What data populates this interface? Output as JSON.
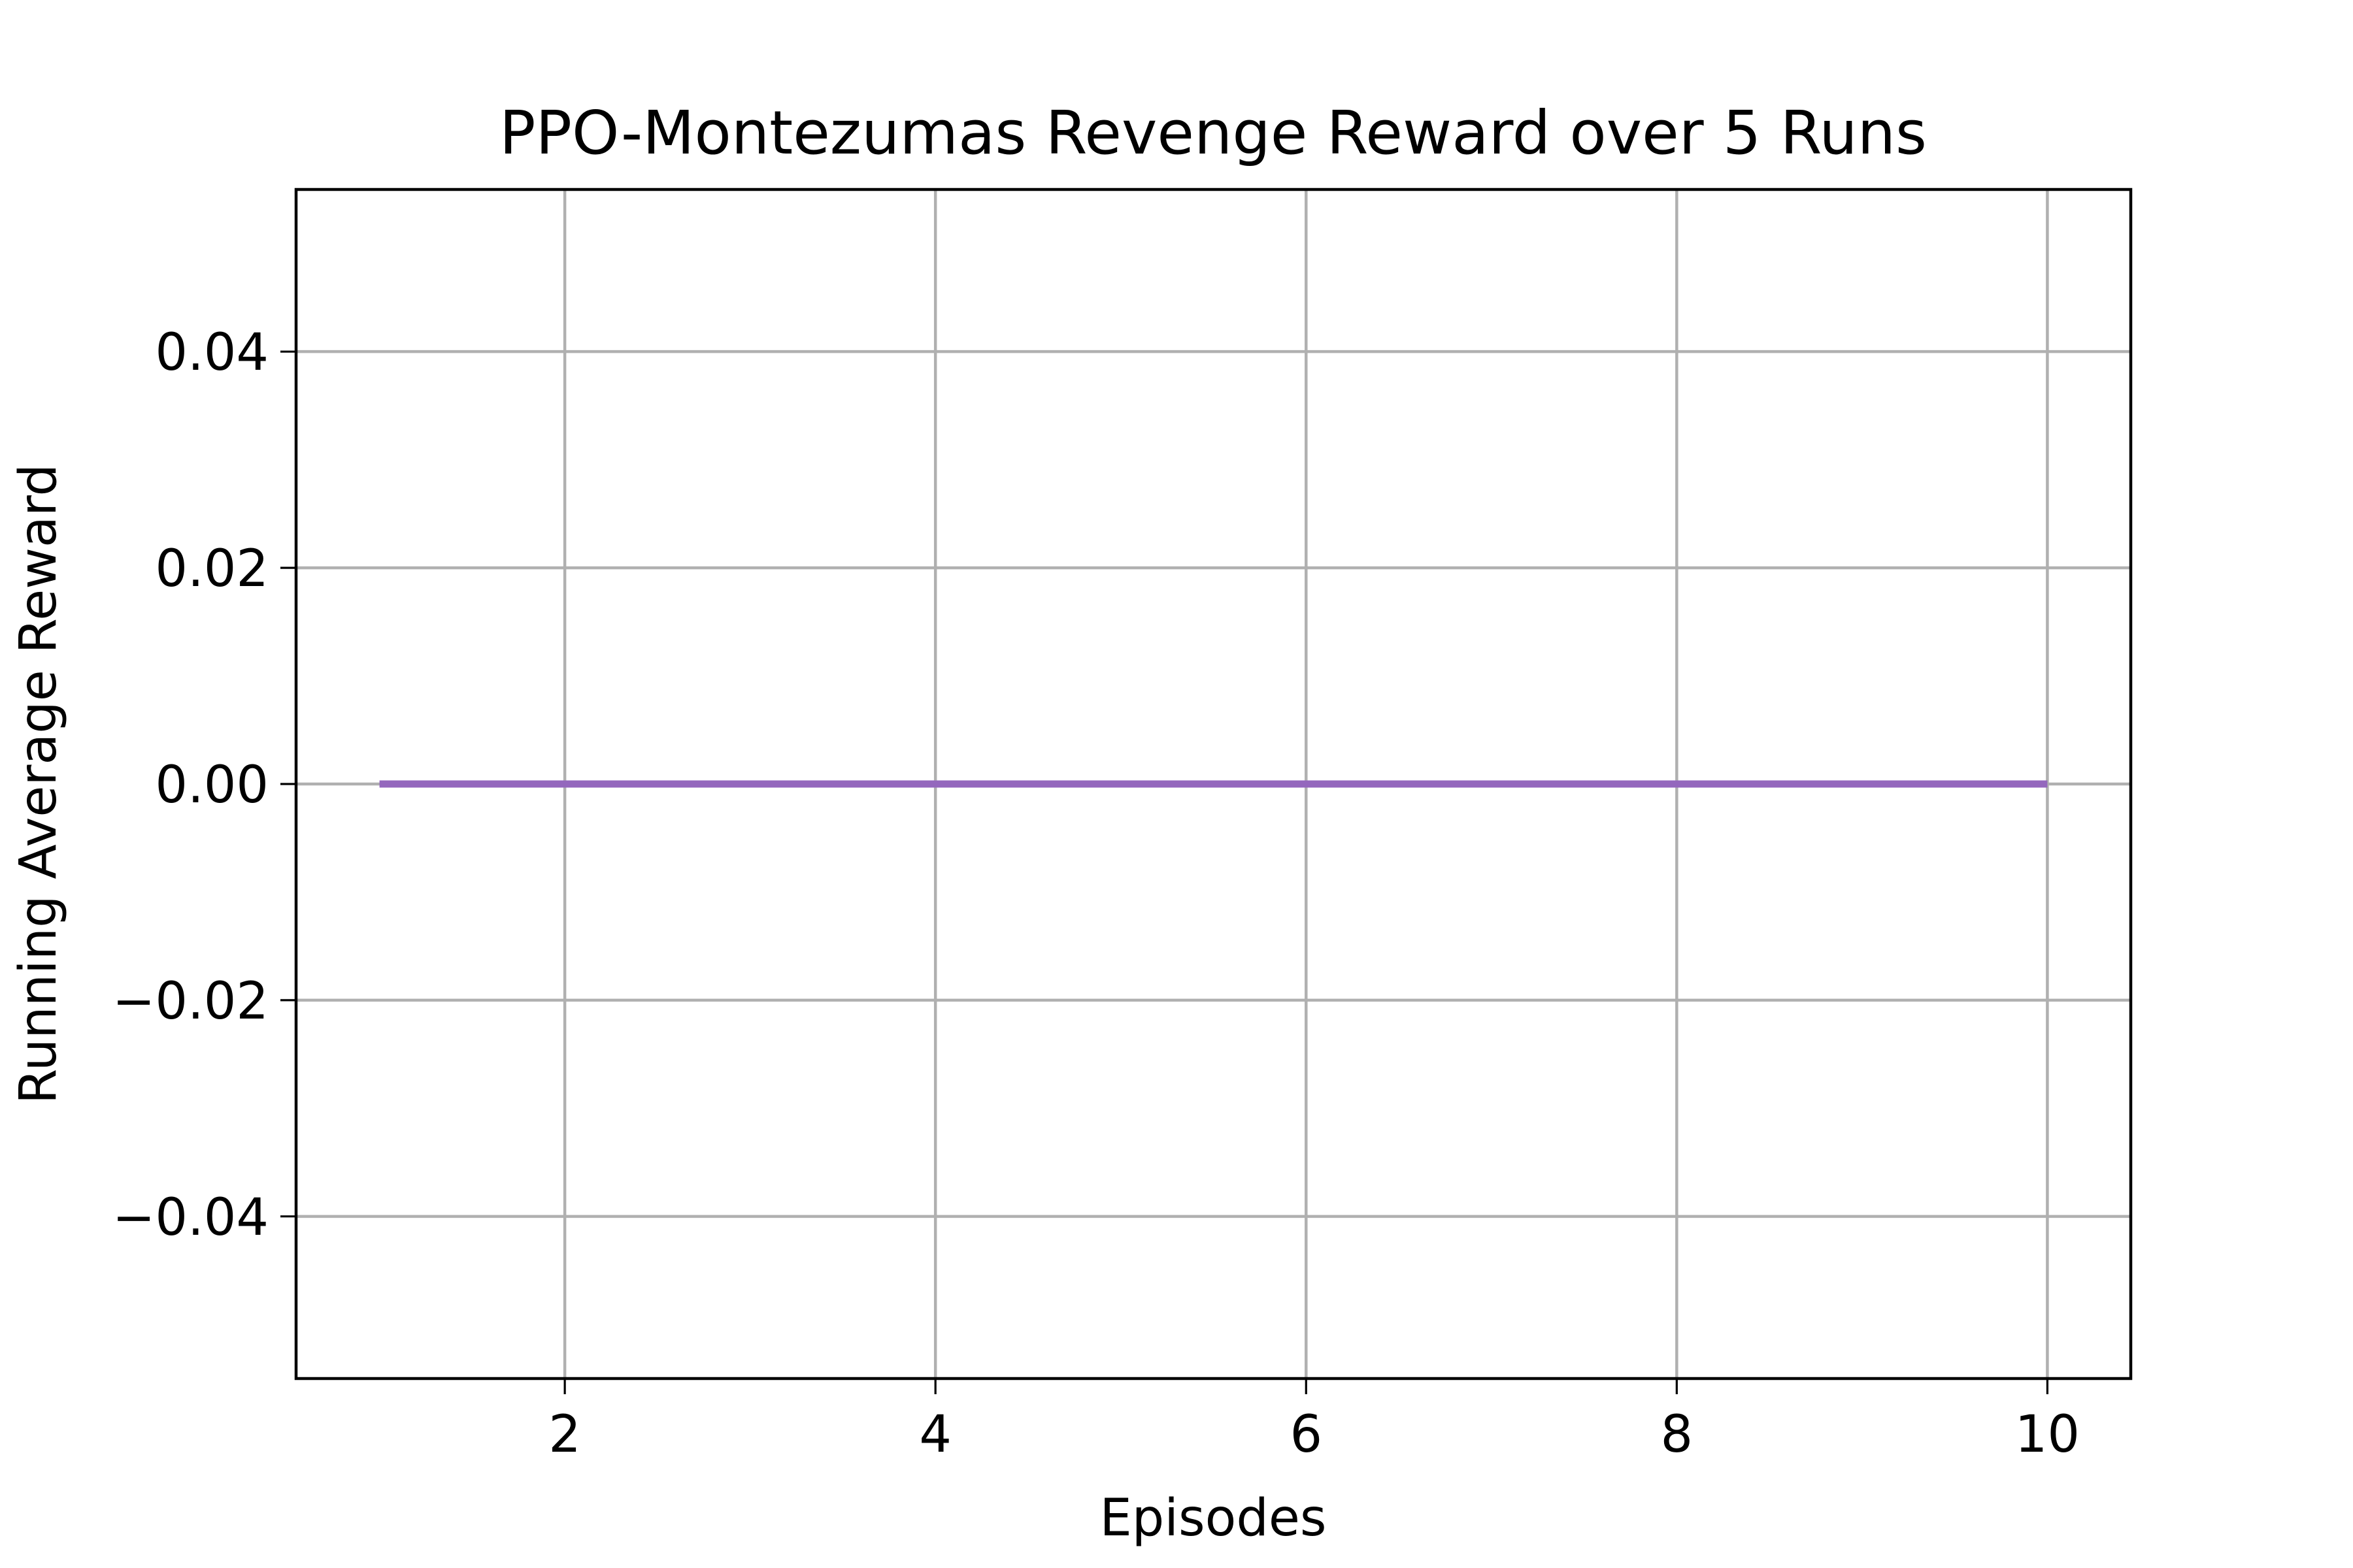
{
  "chart_data": {
    "type": "line",
    "title": "PPO-Montezumas Revenge Reward over 5 Runs",
    "xlabel": "Episodes",
    "ylabel": "Running Average Reward",
    "xlim": [
      0.55,
      10.45
    ],
    "ylim": [
      -0.055,
      0.055
    ],
    "xticks": [
      2,
      4,
      6,
      8,
      10
    ],
    "xtick_labels": [
      "2",
      "4",
      "6",
      "8",
      "10"
    ],
    "yticks": [
      0.04,
      0.02,
      0.0,
      -0.02,
      -0.04
    ],
    "ytick_labels": [
      "0.04",
      "0.02",
      "0.00",
      "−0.02",
      "−0.04"
    ],
    "grid": true,
    "series": [
      {
        "color": "#9467bd",
        "x": [
          1,
          2,
          3,
          4,
          5,
          6,
          7,
          8,
          9,
          10
        ],
        "y": [
          0,
          0,
          0,
          0,
          0,
          0,
          0,
          0,
          0,
          0
        ]
      }
    ]
  }
}
